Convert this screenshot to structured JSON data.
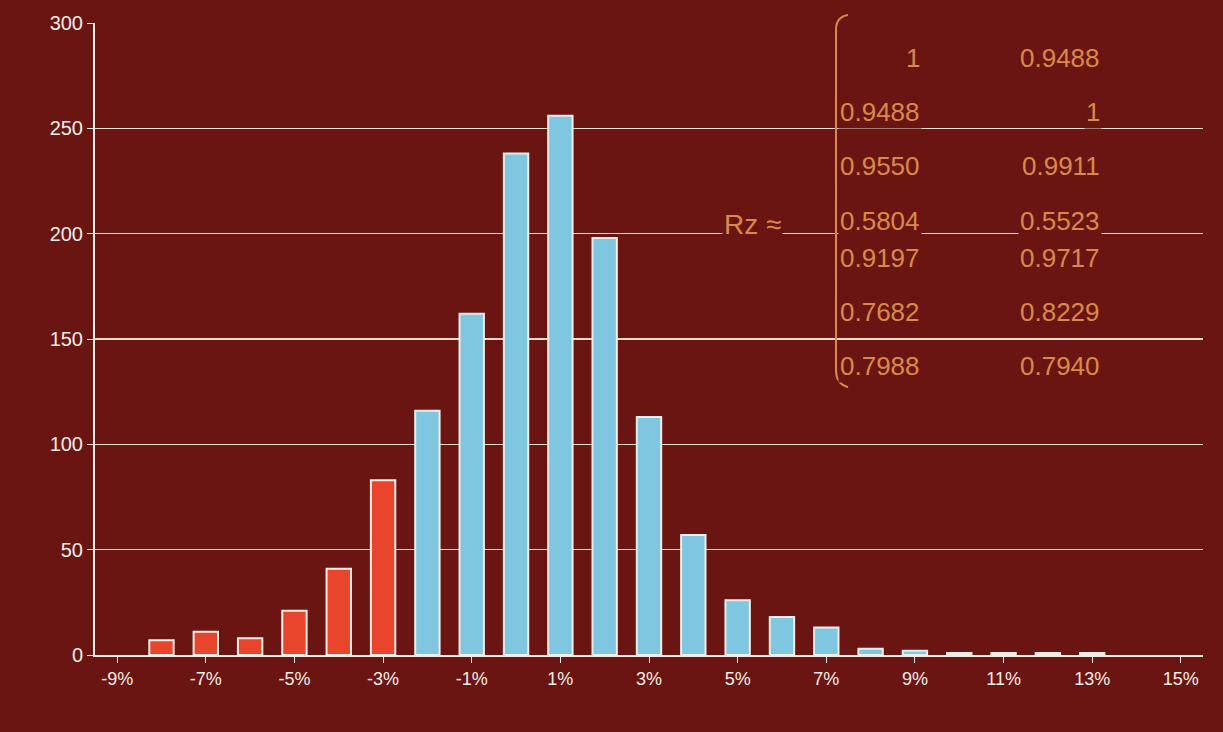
{
  "chart_data": {
    "type": "bar",
    "x": [
      -8,
      -7,
      -6,
      -5,
      -4,
      -3,
      -2,
      -1,
      0,
      1,
      2,
      3,
      4,
      5,
      6,
      7,
      8,
      9,
      10,
      11,
      12,
      13
    ],
    "values": [
      7,
      11,
      8,
      21,
      41,
      83,
      116,
      162,
      238,
      256,
      198,
      113,
      57,
      26,
      18,
      13,
      3,
      2,
      1,
      1,
      1,
      1
    ],
    "colors": [
      "#e8452c",
      "#e8452c",
      "#e8452c",
      "#e8452c",
      "#e8452c",
      "#e8452c",
      "#7fc6e0",
      "#7fc6e0",
      "#7fc6e0",
      "#7fc6e0",
      "#7fc6e0",
      "#7fc6e0",
      "#7fc6e0",
      "#7fc6e0",
      "#7fc6e0",
      "#7fc6e0",
      "#7fc6e0",
      "#7fc6e0",
      "#7fc6e0",
      "#7fc6e0",
      "#7fc6e0",
      "#7fc6e0"
    ],
    "xlim": [
      -9.5,
      15.5
    ],
    "xticks": [
      {
        "value": -9,
        "label": "-9%"
      },
      {
        "value": -7,
        "label": "-7%"
      },
      {
        "value": -5,
        "label": "-5%"
      },
      {
        "value": -3,
        "label": "-3%"
      },
      {
        "value": -1,
        "label": "-1%"
      },
      {
        "value": 1,
        "label": "1%"
      },
      {
        "value": 3,
        "label": "3%"
      },
      {
        "value": 5,
        "label": "5%"
      },
      {
        "value": 7,
        "label": "7%"
      },
      {
        "value": 9,
        "label": "9%"
      },
      {
        "value": 11,
        "label": "11%"
      },
      {
        "value": 13,
        "label": "13%"
      },
      {
        "value": 15,
        "label": "15%"
      }
    ],
    "ylim": [
      0,
      300
    ],
    "yticks": [
      0,
      50,
      100,
      150,
      200,
      250,
      300
    ],
    "grid": true,
    "annotations": [
      {
        "label": "Rz ≈",
        "matrix": [
          [
            "1",
            "0.9488"
          ],
          [
            "0.9488",
            "1"
          ],
          [
            "0.9550",
            "0.9911"
          ],
          [
            "0.5804",
            "0.5523"
          ],
          [
            "0.9197",
            "0.9717"
          ],
          [
            "0.7682",
            "0.8229"
          ],
          [
            "0.7988",
            "0.7940"
          ]
        ]
      }
    ]
  }
}
